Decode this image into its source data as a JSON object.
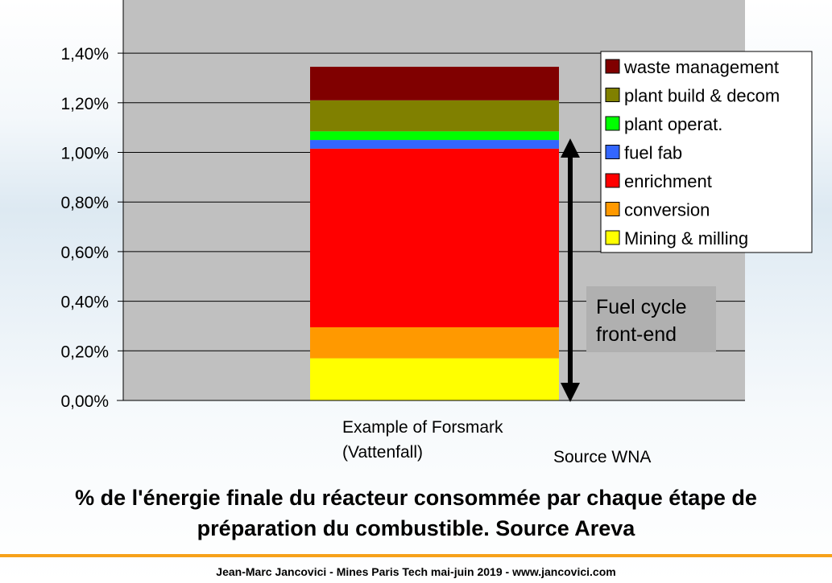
{
  "chart_data": {
    "type": "bar",
    "stacked": true,
    "categories": [
      "Example of Forsmark\n(Vattenfall)"
    ],
    "category_lines": [
      "Example of Forsmark",
      "(Vattenfall)"
    ],
    "series": [
      {
        "name": "Mining & milling",
        "values": [
          0.17
        ],
        "color": "#ffff00"
      },
      {
        "name": "conversion",
        "values": [
          0.125
        ],
        "color": "#ff9900"
      },
      {
        "name": "enrichment",
        "values": [
          0.72
        ],
        "color": "#ff0000"
      },
      {
        "name": "fuel fab",
        "values": [
          0.035
        ],
        "color": "#3366ff"
      },
      {
        "name": "plant operat.",
        "values": [
          0.035
        ],
        "color": "#00ff00"
      },
      {
        "name": "plant build & decom",
        "values": [
          0.125
        ],
        "color": "#808000"
      },
      {
        "name": "waste management",
        "values": [
          0.135
        ],
        "color": "#800000"
      }
    ],
    "ylim": [
      0,
      1.4
    ],
    "yticks": [
      "0,00%",
      "0,20%",
      "0,40%",
      "0,60%",
      "0,80%",
      "1,00%",
      "1,20%",
      "1,40%"
    ],
    "grid": true,
    "legend_position": "top-right",
    "plot_background": "#c0c0c0",
    "annotation": {
      "lines": [
        "Fuel cycle",
        "front-end"
      ],
      "arrow_range": [
        0,
        1.05
      ]
    },
    "source_note": "Source WNA"
  },
  "caption_lines": [
    "% de l'énergie finale du réacteur consommée par chaque étape de",
    "préparation du combustible. Source Areva"
  ],
  "footer": "Jean-Marc Jancovici - Mines Paris Tech mai-juin 2019 - www.jancovici.com",
  "colors": {
    "accent_rule": "#f7a11a"
  }
}
